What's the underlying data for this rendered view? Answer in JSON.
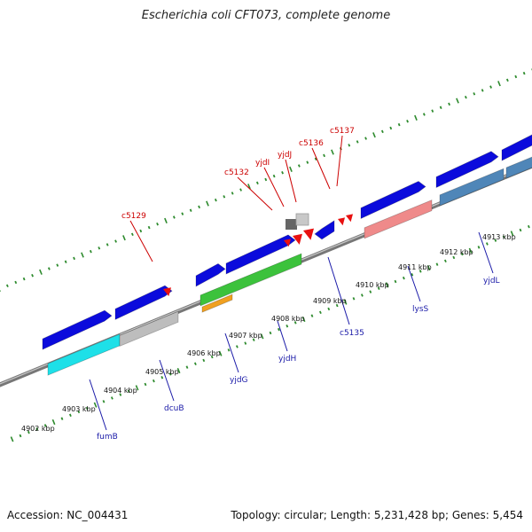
{
  "title": "Escherichia coli CFT073, complete genome",
  "footer": {
    "accession": "Accession: NC_004431",
    "summary": "Topology: circular; Length: 5,231,428 bp; Genes: 5,454"
  },
  "kbp_labels": [
    "4902 kbp",
    "4903 kbp",
    "4904 kbp",
    "4905 kbp",
    "4906 kbp",
    "4907 kbp",
    "4908 kbp",
    "4909 kbp",
    "4910 kbp",
    "4911 kbp",
    "4912 kbp",
    "4913 kbp"
  ],
  "red_labels": [
    "c5129",
    "c5132",
    "yjdI",
    "yjdJ",
    "c5136",
    "c5137"
  ],
  "blue_labels": [
    "fumB",
    "dcuB",
    "yjdG",
    "yjdH",
    "c5135",
    "lysS",
    "yjdL"
  ],
  "colors": {
    "backbone": "#8c8c8c",
    "ruler_ticks": "#2e8b2e",
    "gene_blue": "#0b0bdc",
    "gene_cyan": "#1ee0e8",
    "gene_gray": "#bdbdbd",
    "gene_green": "#3cc23c",
    "gene_orange": "#f0a020",
    "gene_pink": "#ef8a8a",
    "gene_steel": "#4f86b8",
    "pseudo_red": "#e81010",
    "label_red": "#cc0000",
    "label_blue": "#1a1aa8"
  }
}
